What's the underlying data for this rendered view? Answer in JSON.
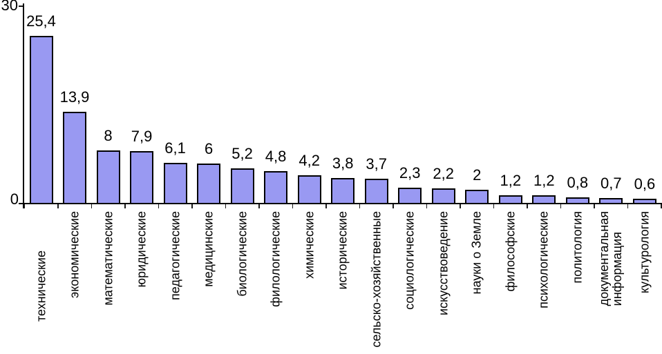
{
  "chart_data": {
    "type": "bar",
    "title": "",
    "xlabel": "",
    "ylabel": "",
    "categories": [
      "технические",
      "экономические",
      "математические",
      "юридические",
      "педагогические",
      "медицинские",
      "биологические",
      "филологические",
      "химические",
      "исторические",
      "сельско-хозяйственные",
      "социологические",
      "искусствоведение",
      "науки о Земле",
      "философские",
      "психологические",
      "политология",
      "документальная\nинформация",
      "культурология"
    ],
    "values": [
      25.4,
      13.9,
      8,
      7.9,
      6.1,
      6,
      5.2,
      4.8,
      4.2,
      3.8,
      3.7,
      2.3,
      2.2,
      2,
      1.2,
      1.2,
      0.8,
      0.7,
      0.6
    ],
    "value_labels": [
      "25,4",
      "13,9",
      "8",
      "7,9",
      "6,1",
      "6",
      "5,2",
      "4,8",
      "4,2",
      "3,8",
      "3,7",
      "2,3",
      "2,2",
      "2",
      "1,2",
      "1,2",
      "0,8",
      "0,7",
      "0,6"
    ],
    "ylim": [
      0,
      30
    ],
    "y_tick_labels": [
      "30",
      "0"
    ],
    "grid": false,
    "legend": false,
    "category_label_orientation": "vertical-bottom-to-top",
    "bar_fill_color": "#9999f2",
    "bar_border_color": "#000000",
    "axis_color": "#000000",
    "background_color": "#ffffff"
  }
}
